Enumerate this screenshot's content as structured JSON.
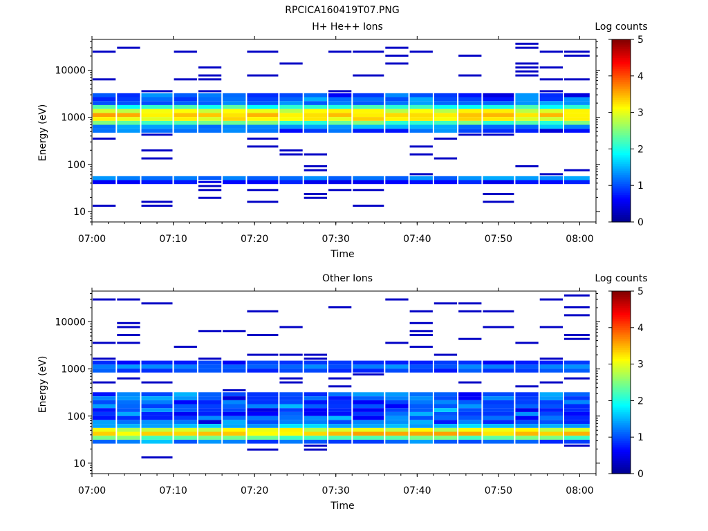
{
  "figure_title": "RPCICA160419T07.PNG",
  "colors": {
    "colormap": [
      "#00008f",
      "#0000ff",
      "#0080ff",
      "#00ffff",
      "#80ff80",
      "#ffff00",
      "#ff8000",
      "#ff0000",
      "#800000"
    ]
  },
  "chart_data": [
    {
      "type": "heatmap",
      "title": "H+ He++ Ions",
      "xlabel": "Time",
      "ylabel": "Energy (eV)",
      "xlim": [
        "07:00",
        "08:02"
      ],
      "ylim": [
        6,
        45000
      ],
      "yscale": "log",
      "x_ticks": [
        "07:00",
        "07:10",
        "07:20",
        "07:30",
        "07:40",
        "07:50",
        "08:00"
      ],
      "y_ticks": [
        "10",
        "100",
        "1000",
        "10000"
      ],
      "colorbar": {
        "label": "Log counts",
        "range": [
          0,
          5
        ],
        "ticks": [
          "0",
          "1",
          "2",
          "3",
          "4",
          "5"
        ]
      },
      "time_bins": [
        "07:00",
        "07:03",
        "07:06",
        "07:10",
        "07:13",
        "07:16",
        "07:19",
        "07:23",
        "07:26",
        "07:29",
        "07:32",
        "07:36",
        "07:39",
        "07:42",
        "07:45",
        "07:48",
        "07:52",
        "07:55",
        "07:58"
      ],
      "profile": [
        {
          "center": 1000,
          "width": 0.18,
          "peak": 3.4
        },
        {
          "center": 45,
          "width": 0.06,
          "peak": 1.3
        }
      ],
      "main_band_energy_range": [
        420,
        2900
      ],
      "sparse_counts": 0.3
    },
    {
      "type": "heatmap",
      "title": "Other Ions",
      "xlabel": "Time",
      "ylabel": "Energy (eV)",
      "xlim": [
        "07:00",
        "08:02"
      ],
      "ylim": [
        6,
        45000
      ],
      "yscale": "log",
      "x_ticks": [
        "07:00",
        "07:10",
        "07:20",
        "07:30",
        "07:40",
        "07:50",
        "08:00"
      ],
      "y_ticks": [
        "10",
        "100",
        "1000",
        "10000"
      ],
      "colorbar": {
        "label": "Log counts",
        "range": [
          0,
          5
        ],
        "ticks": [
          "0",
          "1",
          "2",
          "3",
          "4",
          "5"
        ]
      },
      "time_bins": [
        "07:00",
        "07:03",
        "07:06",
        "07:10",
        "07:13",
        "07:16",
        "07:19",
        "07:23",
        "07:26",
        "07:29",
        "07:32",
        "07:36",
        "07:39",
        "07:42",
        "07:45",
        "07:48",
        "07:52",
        "07:55",
        "07:58"
      ],
      "profile": [
        {
          "center": 40,
          "width": 0.12,
          "peak": 3.4
        },
        {
          "center": 1000,
          "width": 0.1,
          "peak": 1.2
        }
      ],
      "main_band_energy_range": [
        25,
        280
      ],
      "sparse_counts": 0.3
    }
  ]
}
